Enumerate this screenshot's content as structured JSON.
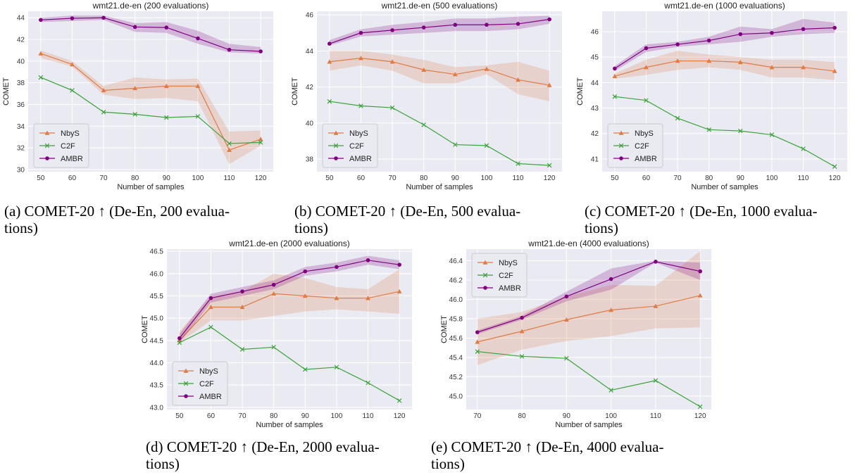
{
  "colors": {
    "NbyS": "#e07b43",
    "C2F": "#3aa23a",
    "AMBR": "#800080",
    "plot_bg": "#eaeaf2",
    "grid": "#ffffff"
  },
  "captions": [
    {
      "id": "a",
      "line1": "(a) COMET-20 ↑ (De-En, 200 evalua-",
      "line2": "tions)"
    },
    {
      "id": "b",
      "line1": "(b) COMET-20 ↑ (De-En, 500 evalua-",
      "line2": "tions)"
    },
    {
      "id": "c",
      "line1": "(c) COMET-20 ↑ (De-En, 1000 evalua-",
      "line2": "tions)"
    },
    {
      "id": "d",
      "line1": "(d) COMET-20 ↑ (De-En, 2000 evalua-",
      "line2": "tions)"
    },
    {
      "id": "e",
      "line1": "(e) COMET-20 ↑ (De-En, 4000 evalua-",
      "line2": "tions)"
    }
  ],
  "chart_data": [
    {
      "type": "line",
      "title": "wmt21.de-en (200 evaluations)",
      "xlabel": "Number of samples",
      "ylabel": "COMET",
      "x": [
        50,
        60,
        70,
        80,
        90,
        100,
        110,
        120
      ],
      "xlim": [
        46,
        124
      ],
      "ylim": [
        29.8,
        44.6
      ],
      "yticks": [
        30,
        32,
        34,
        36,
        38,
        40,
        42,
        44
      ],
      "legend": "lower-left",
      "series": [
        {
          "name": "NbyS",
          "marker": "triangle",
          "values": [
            40.7,
            39.7,
            37.3,
            37.5,
            37.7,
            37.7,
            31.8,
            32.8
          ],
          "band_low": [
            40.3,
            39.5,
            36.9,
            36.5,
            36.6,
            36.3,
            30.5,
            32.2
          ],
          "band_high": [
            41.0,
            40.0,
            37.7,
            38.5,
            38.3,
            38.4,
            33.5,
            33.6
          ]
        },
        {
          "name": "C2F",
          "marker": "x",
          "values": [
            38.5,
            37.3,
            35.3,
            35.1,
            34.8,
            34.9,
            32.4,
            32.5
          ]
        },
        {
          "name": "AMBR",
          "marker": "circle",
          "values": [
            43.8,
            43.95,
            44.0,
            43.15,
            43.1,
            42.1,
            41.05,
            40.9
          ],
          "band_low": [
            43.6,
            43.7,
            43.8,
            42.7,
            42.6,
            41.6,
            40.8,
            40.7
          ],
          "band_high": [
            44.0,
            44.2,
            44.2,
            43.5,
            43.6,
            42.8,
            41.6,
            41.3
          ]
        }
      ]
    },
    {
      "type": "line",
      "title": "wmt21.de-en (500 evaluations)",
      "xlabel": "Number of samples",
      "ylabel": "COMET",
      "x": [
        50,
        60,
        70,
        80,
        90,
        100,
        110,
        120
      ],
      "xlim": [
        46,
        124
      ],
      "ylim": [
        37.3,
        46.2
      ],
      "yticks": [
        38,
        40,
        42,
        44,
        46
      ],
      "legend": "lower-left",
      "series": [
        {
          "name": "NbyS",
          "marker": "triangle",
          "values": [
            43.4,
            43.6,
            43.4,
            42.95,
            42.7,
            43.0,
            42.4,
            42.1
          ],
          "band_low": [
            42.9,
            43.2,
            42.9,
            42.2,
            42.2,
            42.7,
            41.6,
            41.2
          ],
          "band_high": [
            44.0,
            44.0,
            43.8,
            43.5,
            43.1,
            43.2,
            43.4,
            42.9
          ]
        },
        {
          "name": "C2F",
          "marker": "x",
          "values": [
            41.2,
            40.95,
            40.85,
            39.9,
            38.8,
            38.75,
            37.75,
            37.65
          ]
        },
        {
          "name": "AMBR",
          "marker": "circle",
          "values": [
            44.4,
            45.0,
            45.15,
            45.3,
            45.45,
            45.45,
            45.5,
            45.75
          ],
          "band_low": [
            44.3,
            44.8,
            44.9,
            45.0,
            45.1,
            45.1,
            45.2,
            45.5
          ],
          "band_high": [
            44.6,
            45.2,
            45.45,
            45.6,
            45.8,
            45.8,
            45.9,
            45.95
          ]
        }
      ]
    },
    {
      "type": "line",
      "title": "wmt21.de-en (1000 evaluations)",
      "xlabel": "Number of samples",
      "ylabel": "COMET",
      "x": [
        50,
        60,
        70,
        80,
        90,
        100,
        110,
        120
      ],
      "xlim": [
        46,
        124
      ],
      "ylim": [
        40.5,
        46.8
      ],
      "yticks": [
        41,
        42,
        43,
        44,
        45,
        46
      ],
      "legend": "lower-left",
      "series": [
        {
          "name": "NbyS",
          "marker": "triangle",
          "values": [
            44.25,
            44.6,
            44.85,
            44.85,
            44.8,
            44.6,
            44.6,
            44.45
          ],
          "band_low": [
            44.15,
            44.3,
            44.5,
            44.6,
            44.5,
            44.2,
            44.2,
            44.1
          ],
          "band_high": [
            44.35,
            44.9,
            45.25,
            45.1,
            45.0,
            44.9,
            44.9,
            44.8
          ]
        },
        {
          "name": "C2F",
          "marker": "x",
          "values": [
            43.45,
            43.3,
            42.6,
            42.15,
            42.1,
            41.95,
            41.4,
            40.7
          ]
        },
        {
          "name": "AMBR",
          "marker": "circle",
          "values": [
            44.55,
            45.35,
            45.5,
            45.65,
            45.9,
            45.95,
            46.1,
            46.15
          ],
          "band_low": [
            44.45,
            45.2,
            45.4,
            45.5,
            45.6,
            45.8,
            45.9,
            45.95
          ],
          "band_high": [
            44.65,
            45.5,
            45.6,
            45.8,
            46.2,
            46.1,
            46.5,
            46.35
          ]
        }
      ]
    },
    {
      "type": "line",
      "title": "wmt21.de-en (2000 evaluations)",
      "xlabel": "Number of samples",
      "ylabel": "COMET",
      "x": [
        50,
        60,
        70,
        80,
        90,
        100,
        110,
        120
      ],
      "xlim": [
        46,
        124
      ],
      "ylim": [
        42.95,
        46.55
      ],
      "yticks": [
        43.0,
        43.5,
        44.0,
        44.5,
        45.0,
        45.5,
        46.0,
        46.5
      ],
      "legend": "lower-left",
      "series": [
        {
          "name": "NbyS",
          "marker": "triangle",
          "values": [
            44.5,
            45.25,
            45.25,
            45.55,
            45.5,
            45.45,
            45.45,
            45.6
          ],
          "band_low": [
            44.45,
            44.95,
            44.95,
            45.05,
            45.15,
            45.2,
            45.15,
            45.1
          ],
          "band_high": [
            44.7,
            45.5,
            45.6,
            46.0,
            45.9,
            45.7,
            45.65,
            46.1
          ]
        },
        {
          "name": "C2F",
          "marker": "x",
          "values": [
            44.45,
            44.8,
            44.3,
            44.35,
            43.85,
            43.9,
            43.55,
            43.15
          ]
        },
        {
          "name": "AMBR",
          "marker": "circle",
          "values": [
            44.55,
            45.45,
            45.6,
            45.75,
            46.05,
            46.15,
            46.3,
            46.2
          ],
          "band_low": [
            44.45,
            45.35,
            45.5,
            45.65,
            45.95,
            46.05,
            46.2,
            46.1
          ],
          "band_high": [
            44.65,
            45.55,
            45.7,
            45.85,
            46.15,
            46.25,
            46.4,
            46.3
          ]
        }
      ]
    },
    {
      "type": "line",
      "title": "wmt21.de-en (4000 evaluations)",
      "xlabel": "Number of samples",
      "ylabel": "COMET",
      "x": [
        70,
        80,
        90,
        100,
        110,
        120
      ],
      "xlim": [
        67.5,
        122.5
      ],
      "ylim": [
        44.86,
        46.52
      ],
      "yticks": [
        45.0,
        45.2,
        45.4,
        45.6,
        45.8,
        46.0,
        46.2,
        46.4
      ],
      "legend": "upper-left",
      "series": [
        {
          "name": "NbyS",
          "marker": "triangle",
          "values": [
            45.56,
            45.67,
            45.79,
            45.89,
            45.93,
            46.04
          ],
          "band_low": [
            45.32,
            45.48,
            45.57,
            45.62,
            45.7,
            45.71
          ],
          "band_high": [
            45.8,
            45.87,
            46.03,
            46.15,
            46.14,
            46.5
          ]
        },
        {
          "name": "C2F",
          "marker": "x",
          "values": [
            45.46,
            45.41,
            45.39,
            45.06,
            45.16,
            44.89
          ]
        },
        {
          "name": "AMBR",
          "marker": "circle",
          "values": [
            45.66,
            45.81,
            46.03,
            46.21,
            46.39,
            46.29
          ],
          "band_low": [
            45.64,
            45.79,
            45.98,
            46.1,
            46.38,
            46.2
          ],
          "band_high": [
            45.68,
            45.83,
            46.08,
            46.32,
            46.4,
            46.38
          ]
        }
      ]
    }
  ]
}
